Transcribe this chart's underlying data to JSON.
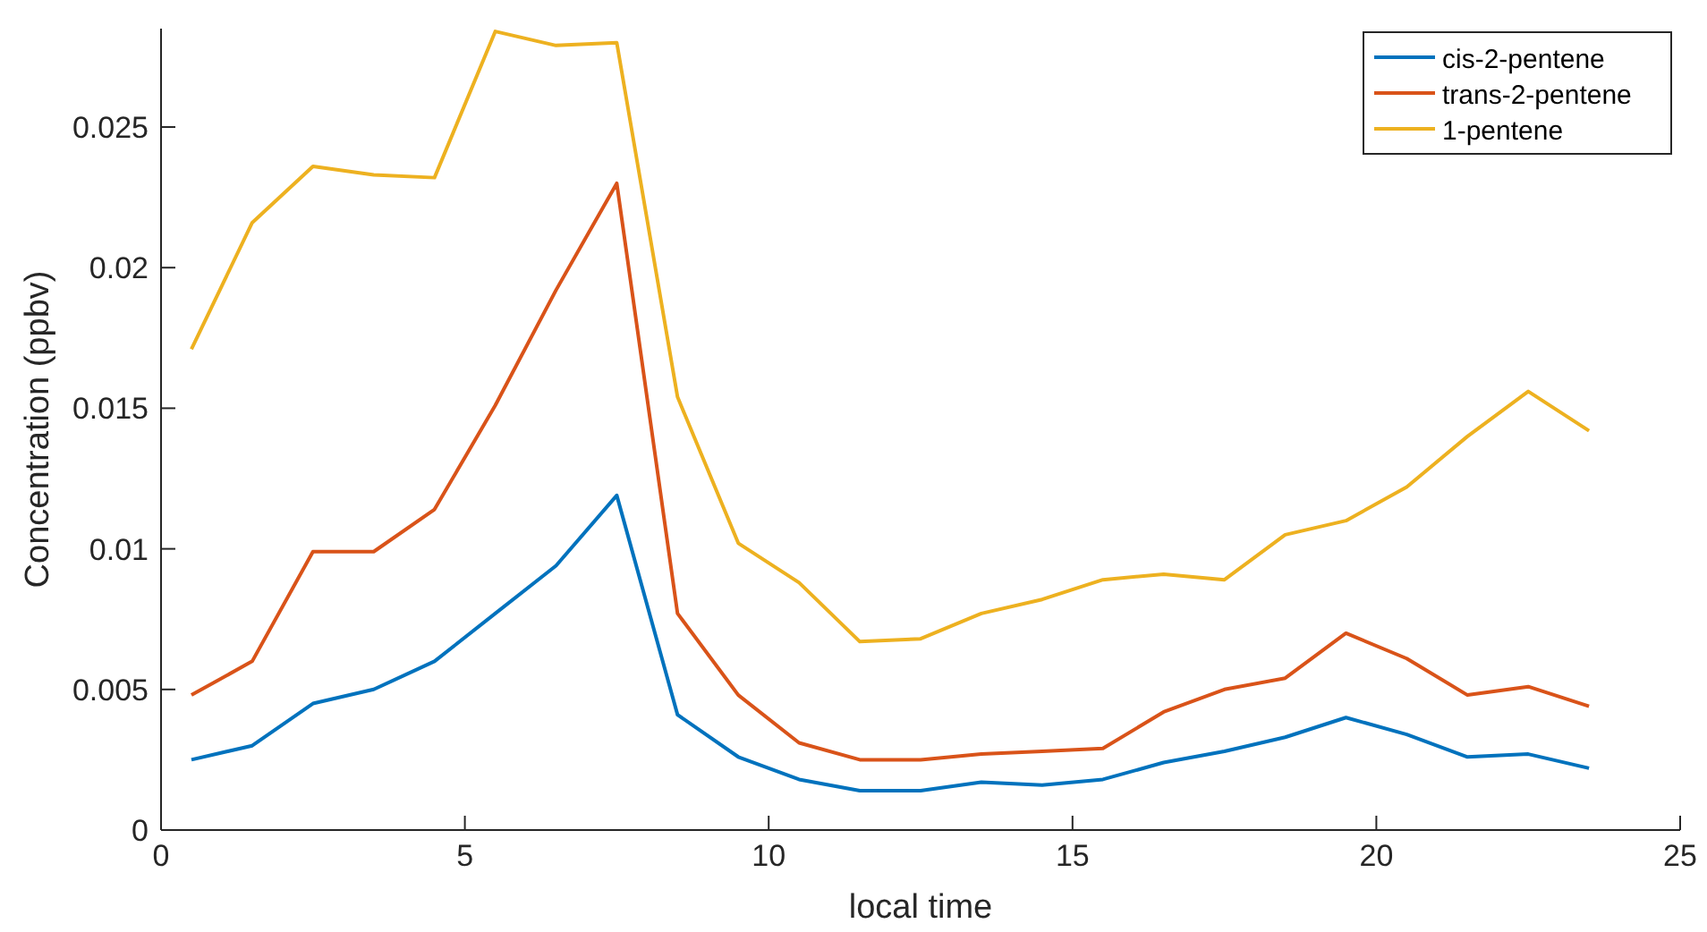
{
  "chart_data": {
    "type": "line",
    "xlabel": "local time",
    "ylabel": "Concentration (ppbv)",
    "x": [
      0.5,
      1.5,
      2.5,
      3.5,
      4.5,
      5.5,
      6.5,
      7.5,
      8.5,
      9.5,
      10.5,
      11.5,
      12.5,
      13.5,
      14.5,
      15.5,
      16.5,
      17.5,
      18.5,
      19.5,
      20.5,
      21.5,
      22.5,
      23.5
    ],
    "series": [
      {
        "name": "cis-2-pentene",
        "color": "#0072bd",
        "values": [
          0.0025,
          0.003,
          0.0045,
          0.005,
          0.006,
          0.0077,
          0.0094,
          0.0119,
          0.0041,
          0.0026,
          0.0018,
          0.0014,
          0.0014,
          0.0017,
          0.0016,
          0.0018,
          0.0024,
          0.0028,
          0.0033,
          0.004,
          0.0034,
          0.0026,
          0.0027,
          0.0022
        ]
      },
      {
        "name": "trans-2-pentene",
        "color": "#d95319",
        "values": [
          0.0048,
          0.006,
          0.0099,
          0.0099,
          0.0114,
          0.0151,
          0.0192,
          0.023,
          0.0077,
          0.0048,
          0.0031,
          0.0025,
          0.0025,
          0.0027,
          0.0028,
          0.0029,
          0.0042,
          0.005,
          0.0054,
          0.007,
          0.0061,
          0.0048,
          0.0051,
          0.0044
        ]
      },
      {
        "name": "1-pentene",
        "color": "#edb120",
        "values": [
          0.0171,
          0.0216,
          0.0236,
          0.0233,
          0.0232,
          0.0284,
          0.0279,
          0.028,
          0.0154,
          0.0102,
          0.0088,
          0.0067,
          0.0068,
          0.0077,
          0.0082,
          0.0089,
          0.0091,
          0.0089,
          0.0105,
          0.011,
          0.0122,
          0.014,
          0.0156,
          0.0142
        ]
      }
    ],
    "xlim": [
      0,
      25
    ],
    "xticks": [
      0,
      5,
      10,
      15,
      20,
      25
    ],
    "ylim": [
      0,
      0.0285
    ],
    "yticks": [
      0,
      0.005,
      0.01,
      0.015,
      0.02,
      0.025
    ],
    "legend": "top right",
    "grid": false,
    "marker": "none",
    "line_style": "solid"
  }
}
